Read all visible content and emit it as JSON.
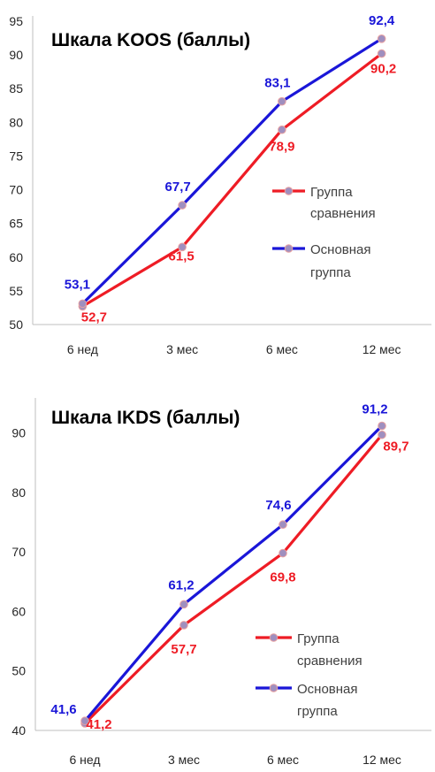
{
  "chart_data": [
    {
      "type": "line",
      "title": "Шкала KOOS (баллы)",
      "categories": [
        "6 нед",
        "3 мес",
        "6 мес",
        "12 мес"
      ],
      "ylim": [
        50,
        95
      ],
      "yticks": [
        "50",
        "55",
        "60",
        "65",
        "70",
        "75",
        "80",
        "85",
        "90",
        "95"
      ],
      "grid": false,
      "legend_position": "center-right",
      "series": [
        {
          "name": "Группа сравнения",
          "color": "#ee1c25",
          "values": [
            52.7,
            61.5,
            78.9,
            90.2
          ],
          "labels": [
            "52,7",
            "61,5",
            "78,9",
            "90,2"
          ]
        },
        {
          "name": "Основная группа",
          "color": "#1a16d8",
          "values": [
            53.1,
            67.7,
            83.1,
            92.4
          ],
          "labels": [
            "53,1",
            "67,7",
            "83,1",
            "92,4"
          ]
        }
      ]
    },
    {
      "type": "line",
      "title": "Шкала IKDS (баллы)",
      "categories": [
        "6 нед",
        "3 мес",
        "6 мес",
        "12 мес"
      ],
      "ylim": [
        40,
        95
      ],
      "yticks": [
        "40",
        "50",
        "60",
        "70",
        "80",
        "90"
      ],
      "grid": false,
      "legend_position": "bottom-right",
      "series": [
        {
          "name": "Группа сравнения",
          "color": "#ee1c25",
          "values": [
            41.2,
            57.7,
            69.8,
            89.7
          ],
          "labels": [
            "41,2",
            "57,7",
            "69,8",
            "89,7"
          ]
        },
        {
          "name": "Основная группа",
          "color": "#1a16d8",
          "values": [
            41.6,
            61.2,
            74.6,
            91.2
          ],
          "labels": [
            "41,6",
            "61,2",
            "74,6",
            "91,2"
          ]
        }
      ]
    }
  ]
}
